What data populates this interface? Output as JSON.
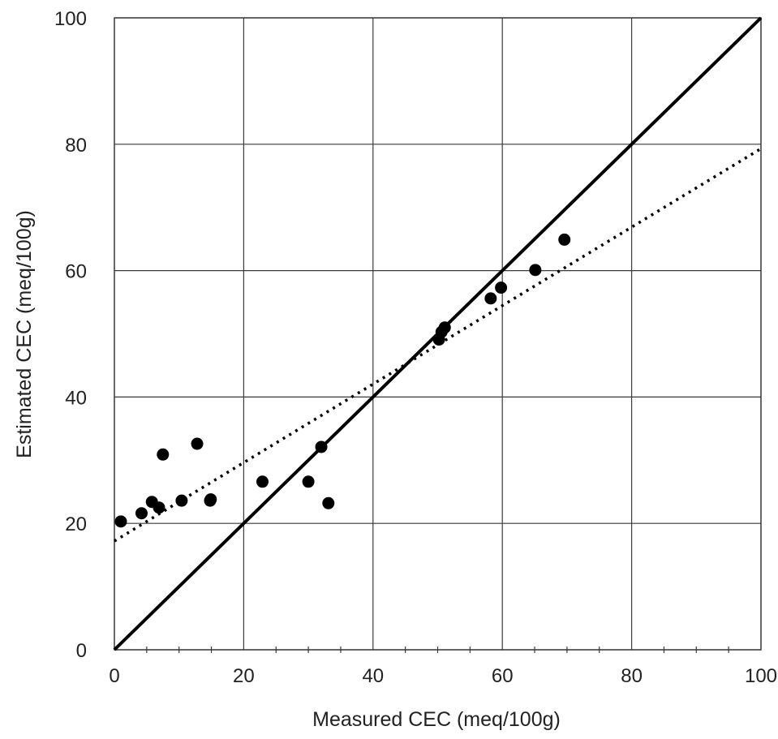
{
  "chart_data": {
    "type": "scatter",
    "xlabel": "Measured CEC (meq/100g)",
    "ylabel": "Estimated CEC (meq/100g)",
    "xlim": [
      0,
      100
    ],
    "ylim": [
      0,
      100
    ],
    "x_ticks": [
      "0",
      "20",
      "40",
      "60",
      "80",
      "100"
    ],
    "y_ticks": [
      "0",
      "20",
      "40",
      "60",
      "80",
      "100"
    ],
    "grid": true,
    "series": [
      {
        "marker": "filled-circle",
        "color": "#000000",
        "points": [
          {
            "x": 1.0,
            "y": 20.3
          },
          {
            "x": 4.2,
            "y": 21.6
          },
          {
            "x": 5.8,
            "y": 23.4
          },
          {
            "x": 6.9,
            "y": 22.5
          },
          {
            "x": 7.5,
            "y": 30.9
          },
          {
            "x": 10.4,
            "y": 23.6
          },
          {
            "x": 12.8,
            "y": 32.6
          },
          {
            "x": 14.8,
            "y": 23.6
          },
          {
            "x": 14.9,
            "y": 23.8
          },
          {
            "x": 22.9,
            "y": 26.6
          },
          {
            "x": 30.0,
            "y": 26.6
          },
          {
            "x": 32.0,
            "y": 32.1
          },
          {
            "x": 33.1,
            "y": 23.2
          },
          {
            "x": 50.2,
            "y": 49.1
          },
          {
            "x": 50.6,
            "y": 50.3
          },
          {
            "x": 51.1,
            "y": 51.0
          },
          {
            "x": 58.2,
            "y": 55.6
          },
          {
            "x": 59.8,
            "y": 57.3
          },
          {
            "x": 65.1,
            "y": 60.1
          },
          {
            "x": 69.6,
            "y": 64.9
          }
        ]
      }
    ],
    "reference_lines": [
      {
        "style": "solid",
        "color": "#000000",
        "x": [
          0,
          100
        ],
        "y": [
          0,
          100
        ]
      },
      {
        "style": "dotted",
        "color": "#000000",
        "x": [
          0,
          100
        ],
        "y": [
          17.2,
          79.3
        ]
      }
    ]
  }
}
